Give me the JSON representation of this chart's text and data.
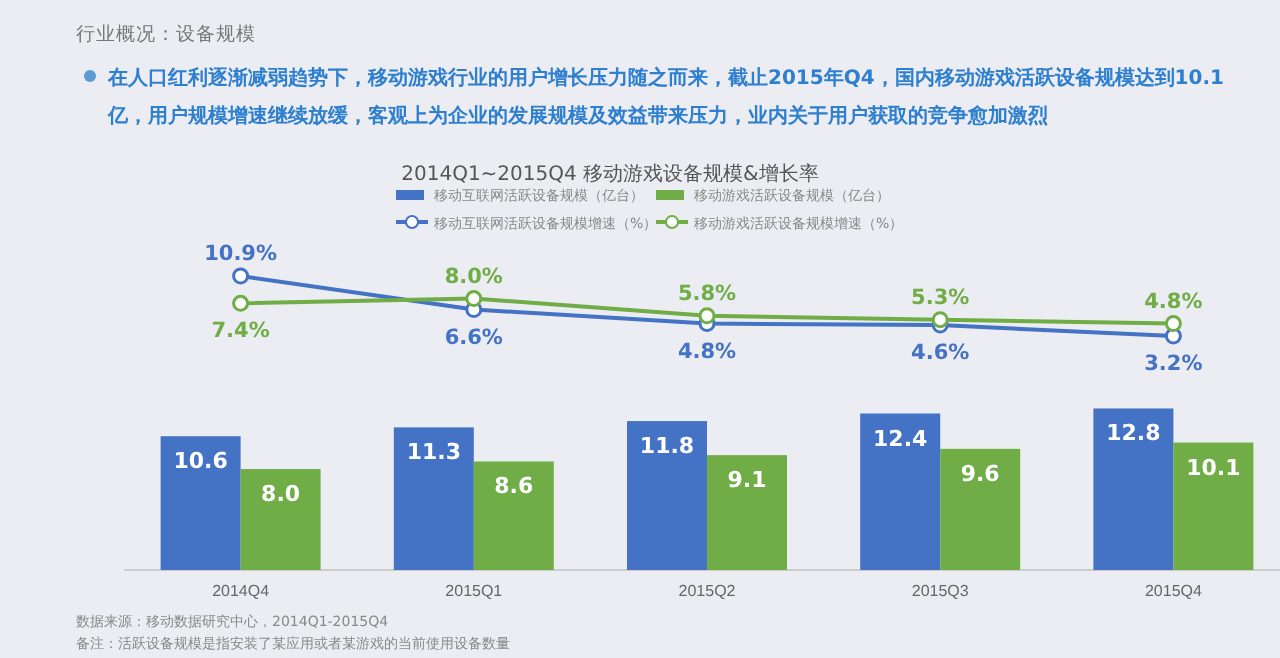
{
  "chart_data": [
    {
      "type": "line",
      "title": "2014Q1~2015Q4 移动游戏设备规模&增长率",
      "subtitle": "在人口红利逐渐减弱趋势下，移动游戏行业的用户增长压力随之而来，截止2015年Q4，国内移动游戏活跃设备规模达到10.1亿，用户规模增速继续放缓，客观上为企业的发展规模及效益带来压力，业内关于用户获取的竞争愈加激烈",
      "annotations": [
        "行业概况：设备规模"
      ],
      "categories": [
        null,
        null,
        null,
        null,
        null
      ],
      "series": [
        {
          "name": "移动互联网活跃设备规模增速（%）",
          "color": "#4472c4",
          "values": [
            10.9,
            6.6,
            4.8,
            4.6,
            3.2
          ],
          "value_labels": [
            "10.9%",
            "6.6%",
            "4.8%",
            "4.6%",
            "3.2%"
          ]
        },
        {
          "name": "移动游戏活跃设备规模增速（%）",
          "color": "#70ad47",
          "values": [
            7.4,
            8.0,
            5.8,
            5.3,
            4.8
          ],
          "value_labels": [
            "7.4%",
            "8.0%",
            "5.8%",
            "5.3%",
            "4.8%"
          ]
        }
      ],
      "marker": "circle",
      "legend": "top"
    },
    {
      "type": "bar",
      "annotations": [
        "数据来源：移动数据研究中心，2014Q1-2015Q4",
        "备注：活跃设备规模是指安装了某应用或者某游戏的当前使用设备数量"
      ],
      "categories": [
        "2014Q4",
        "2015Q1",
        "2015Q2",
        "2015Q3",
        "2015Q4"
      ],
      "series": [
        {
          "name": "移动互联网活跃设备规模（亿台）",
          "color": "#4472c4",
          "values": [
            10.6,
            11.3,
            11.8,
            12.4,
            12.8
          ]
        },
        {
          "name": "移动游戏活跃设备规模（亿台）",
          "color": "#70ad47",
          "values": [
            8.0,
            8.6,
            9.1,
            9.6,
            10.1
          ],
          "value_labels": [
            "8.0",
            "8.6",
            "9.1",
            "9.6",
            "10.1"
          ]
        }
      ],
      "data_labels": true,
      "legend": "top"
    }
  ]
}
